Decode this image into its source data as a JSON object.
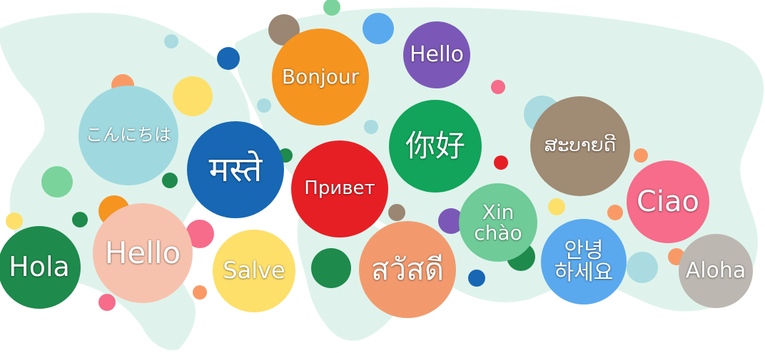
{
  "greetings": [
    {
      "text": "こんにちは",
      "color": "#9fd9df"
    },
    {
      "text": "Hola",
      "color": "#1e8a4c"
    },
    {
      "text": "Hello",
      "color": "#f7c2ad"
    },
    {
      "text": "मस्ते",
      "color": "#1767b4"
    },
    {
      "text": "Salve",
      "color": "#fde06a"
    },
    {
      "text": "Bonjour",
      "color": "#f69420"
    },
    {
      "text": "Привет",
      "color": "#e61f25"
    },
    {
      "text": "Hello",
      "color": "#7b58b7"
    },
    {
      "text": "你好",
      "color": "#11a45a"
    },
    {
      "text": "สวัสดี",
      "color": "#f29a6e"
    },
    {
      "text": "Xin\nchào",
      "color": "#6fcb98"
    },
    {
      "text": "ສະບາຍດີ",
      "color": "#a08b74"
    },
    {
      "text": "Ciao",
      "color": "#f66c8a"
    },
    {
      "text": "안녕\n하세요",
      "color": "#5aa9ee"
    },
    {
      "text": "Aloha",
      "color": "#bcb8b1"
    }
  ],
  "map_color": "#dff3ec",
  "dot_colors": [
    "#f99a66",
    "#fde06a",
    "#1767b4",
    "#9b8673",
    "#59a9ee",
    "#7bd39c",
    "#f66c8a",
    "#1e8a4c",
    "#7b58b7",
    "#e61f25",
    "#a9dbe0",
    "#f69420",
    "#bcb8b1"
  ]
}
